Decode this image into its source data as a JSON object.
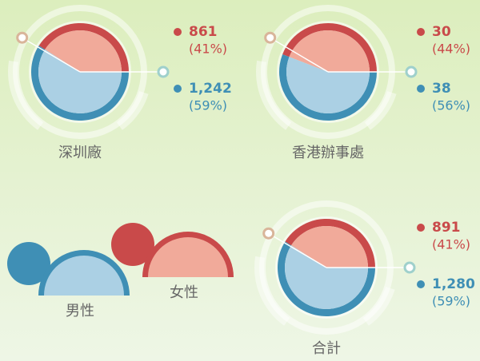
{
  "chart_data": [
    {
      "type": "pie",
      "title": "深圳廠",
      "values": [
        861,
        1242
      ],
      "value_labels": [
        "861",
        "1,242"
      ],
      "percents": [
        41,
        59
      ],
      "percent_labels": [
        "(41%)",
        "(59%)"
      ],
      "colors": [
        "#c94a4a",
        "#3f8fb5"
      ],
      "light_colors": [
        "#f1aa9a",
        "#abd0e4"
      ]
    },
    {
      "type": "pie",
      "title": "香港辦事處",
      "values": [
        30,
        38
      ],
      "value_labels": [
        "30",
        "38"
      ],
      "percents": [
        44,
        56
      ],
      "percent_labels": [
        "(44%)",
        "(56%)"
      ],
      "colors": [
        "#c94a4a",
        "#3f8fb5"
      ],
      "light_colors": [
        "#f1aa9a",
        "#abd0e4"
      ]
    },
    {
      "type": "pie",
      "title": "合計",
      "values": [
        891,
        1280
      ],
      "value_labels": [
        "891",
        "1,280"
      ],
      "percents": [
        41,
        59
      ],
      "percent_labels": [
        "(41%)",
        "(59%)"
      ],
      "colors": [
        "#c94a4a",
        "#3f8fb5"
      ],
      "light_colors": [
        "#f1aa9a",
        "#abd0e4"
      ]
    }
  ],
  "legend": {
    "items": [
      {
        "name": "男性",
        "color": "#3f8fb5"
      },
      {
        "name": "女性",
        "color": "#c94a4a"
      }
    ]
  }
}
